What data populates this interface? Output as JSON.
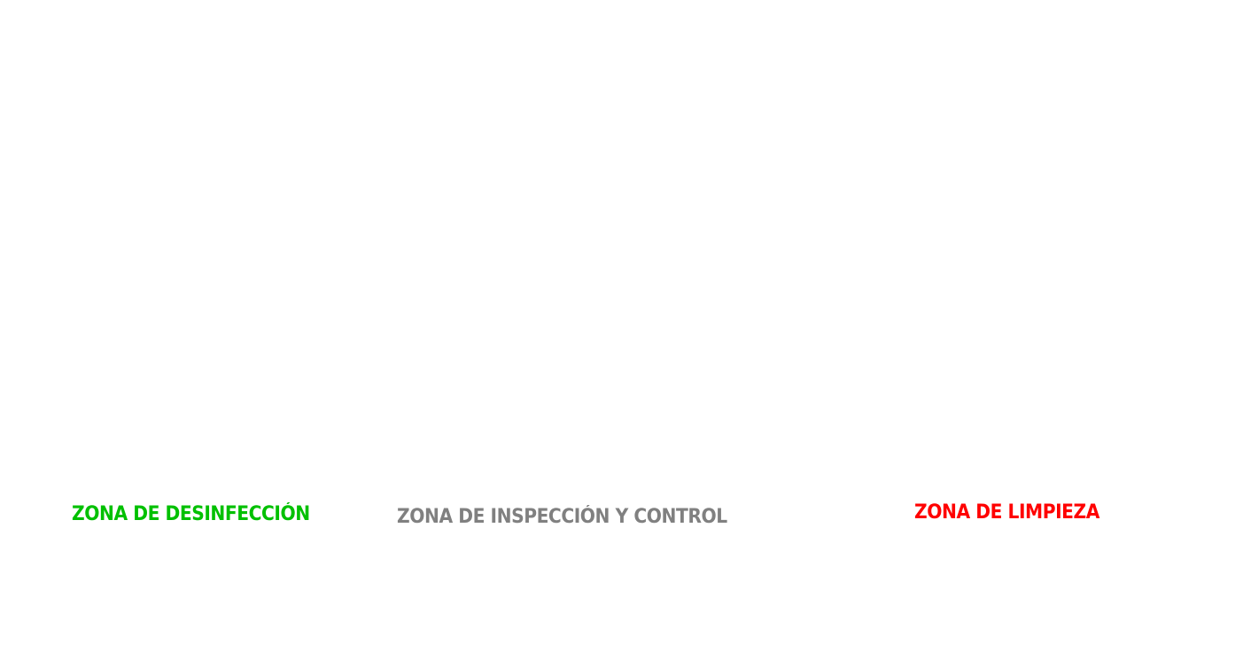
{
  "zones": [
    {
      "label": "ZONA DE DESINFECCIÓN",
      "color": "#00c000"
    },
    {
      "label": "ZONA DE INSPECCIÓN Y CONTROL",
      "color": "#808080"
    },
    {
      "label": "ZONA DE LIMPIEZA",
      "color": "#ff0000"
    }
  ]
}
